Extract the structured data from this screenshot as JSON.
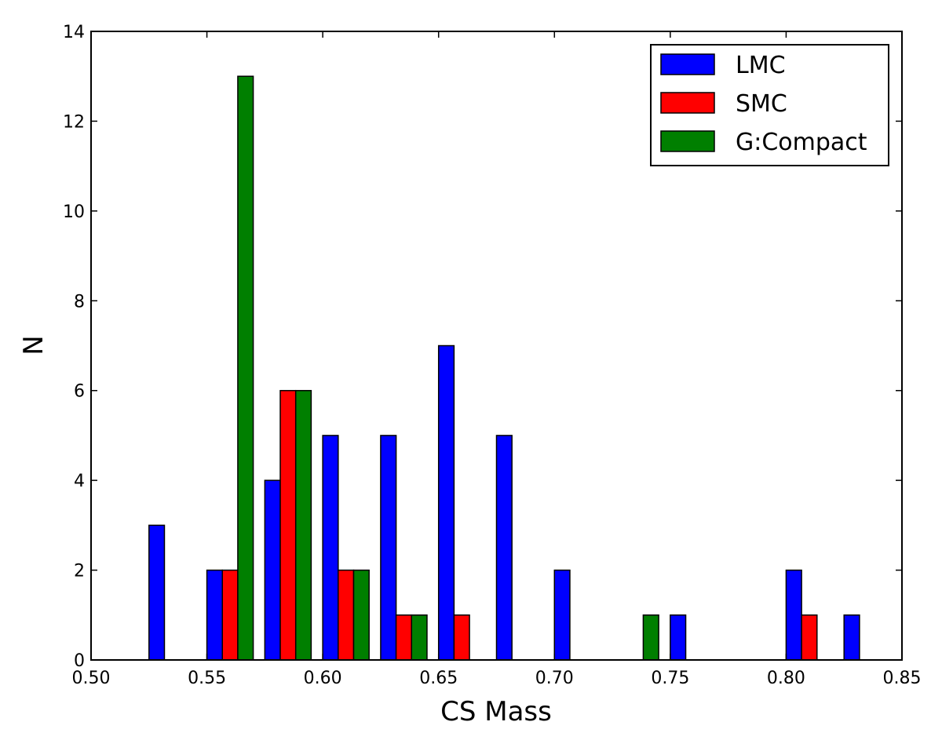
{
  "chart_data": {
    "type": "bar",
    "title": "",
    "xlabel": "CS Mass",
    "ylabel": "N",
    "xlim": [
      0.5,
      0.85
    ],
    "ylim": [
      0,
      14
    ],
    "xticks": [
      "0.50",
      "0.55",
      "0.60",
      "0.65",
      "0.70",
      "0.75",
      "0.80",
      "0.85"
    ],
    "yticks": [
      "0",
      "2",
      "4",
      "6",
      "8",
      "10",
      "12",
      "14"
    ],
    "grid": false,
    "legend_position": "top-right",
    "bins": [
      [
        0.525,
        0.55
      ],
      [
        0.55,
        0.575
      ],
      [
        0.575,
        0.6
      ],
      [
        0.6,
        0.625
      ],
      [
        0.625,
        0.65
      ],
      [
        0.65,
        0.675
      ],
      [
        0.675,
        0.7
      ],
      [
        0.7,
        0.725
      ],
      [
        0.725,
        0.75
      ],
      [
        0.75,
        0.775
      ],
      [
        0.775,
        0.8
      ],
      [
        0.8,
        0.825
      ],
      [
        0.825,
        0.85
      ]
    ],
    "series": [
      {
        "name": "LMC",
        "color": "#0000ff",
        "values": [
          3,
          2,
          4,
          5,
          5,
          7,
          5,
          2,
          0,
          1,
          0,
          2,
          1
        ]
      },
      {
        "name": "SMC",
        "color": "#ff0000",
        "values": [
          0,
          2,
          6,
          2,
          1,
          1,
          0,
          0,
          0,
          0,
          0,
          1,
          0
        ]
      },
      {
        "name": "G:Compact",
        "color": "#007f00",
        "values": [
          0,
          13,
          6,
          2,
          1,
          0,
          0,
          0,
          1,
          0,
          0,
          0,
          0
        ]
      }
    ]
  }
}
